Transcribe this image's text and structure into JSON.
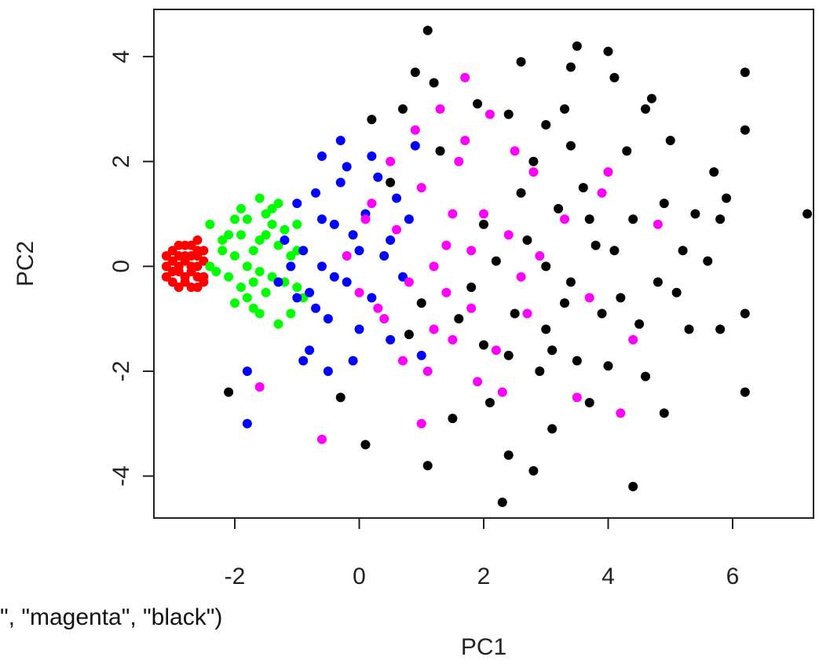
{
  "chart_data": {
    "type": "scatter",
    "title": "",
    "xlabel": "PC1",
    "ylabel": "PC2",
    "xlim": [
      -3.3,
      7.3
    ],
    "ylim": [
      -4.8,
      4.9
    ],
    "x_ticks": [
      -2,
      0,
      2,
      4,
      6
    ],
    "y_ticks": [
      -4,
      -2,
      0,
      2,
      4
    ],
    "x_tick_labels": [
      "-2",
      "0",
      "2",
      "4",
      "6"
    ],
    "y_tick_labels": [
      "-4",
      "-2",
      "0",
      "2",
      "4"
    ],
    "grid": false,
    "legend": null,
    "series": [
      {
        "color": "#ff0000",
        "points": [
          [
            -3.0,
            0.1
          ],
          [
            -2.9,
            -0.1
          ],
          [
            -2.8,
            0.2
          ],
          [
            -2.7,
            0.0
          ],
          [
            -2.6,
            0.3
          ],
          [
            -2.9,
            0.4
          ],
          [
            -3.1,
            -0.2
          ],
          [
            -2.8,
            -0.3
          ],
          [
            -2.6,
            -0.2
          ],
          [
            -2.7,
            0.4
          ],
          [
            -2.5,
            0.1
          ],
          [
            -3.0,
            -0.3
          ],
          [
            -2.9,
            0.2
          ],
          [
            -2.6,
            0.5
          ],
          [
            -2.8,
            0.1
          ],
          [
            -3.1,
            0.0
          ],
          [
            -2.7,
            -0.4
          ],
          [
            -2.5,
            -0.2
          ],
          [
            -2.9,
            -0.4
          ],
          [
            -2.6,
            0.2
          ],
          [
            -2.8,
            0.4
          ],
          [
            -3.0,
            0.3
          ],
          [
            -2.7,
            0.2
          ],
          [
            -2.5,
            0.3
          ],
          [
            -2.9,
            0.0
          ],
          [
            -2.7,
            -0.1
          ],
          [
            -2.6,
            -0.4
          ],
          [
            -3.0,
            -0.1
          ],
          [
            -2.8,
            -0.2
          ],
          [
            -2.6,
            0.0
          ],
          [
            -2.5,
            -0.3
          ],
          [
            -3.1,
            0.2
          ]
        ]
      },
      {
        "color": "#00ff00",
        "points": [
          [
            -2.4,
            0.8
          ],
          [
            -2.2,
            0.5
          ],
          [
            -2.0,
            0.2
          ],
          [
            -1.9,
            -0.4
          ],
          [
            -1.8,
            0.9
          ],
          [
            -1.7,
            0.3
          ],
          [
            -1.6,
            -0.1
          ],
          [
            -1.5,
            0.6
          ],
          [
            -1.4,
            1.1
          ],
          [
            -1.3,
            0.4
          ],
          [
            -1.2,
            -0.3
          ],
          [
            -1.1,
            0.2
          ],
          [
            -1.0,
            0.8
          ],
          [
            -0.9,
            -0.6
          ],
          [
            -1.6,
            1.3
          ],
          [
            -1.7,
            -0.8
          ],
          [
            -2.1,
            -0.2
          ],
          [
            -1.8,
            0.0
          ],
          [
            -1.5,
            -0.5
          ],
          [
            -1.3,
            1.2
          ],
          [
            -1.9,
            0.6
          ],
          [
            -2.3,
            -0.1
          ],
          [
            -2.0,
            0.9
          ],
          [
            -1.4,
            -0.2
          ],
          [
            -1.2,
            0.7
          ],
          [
            -1.0,
            -0.4
          ],
          [
            -1.6,
            0.5
          ],
          [
            -1.7,
            -0.3
          ],
          [
            -2.2,
            0.3
          ],
          [
            -1.8,
            -0.6
          ],
          [
            -1.1,
            -0.9
          ],
          [
            -1.3,
            -1.1
          ],
          [
            -2.0,
            -0.7
          ],
          [
            -1.5,
            1.0
          ],
          [
            -2.4,
            0.0
          ],
          [
            -1.9,
            1.1
          ],
          [
            -1.6,
            -0.9
          ],
          [
            -1.4,
            0.8
          ],
          [
            -2.1,
            0.6
          ],
          [
            -1.0,
            0.3
          ]
        ]
      },
      {
        "color": "#0000ff",
        "points": [
          [
            -1.2,
            0.5
          ],
          [
            -1.0,
            1.2
          ],
          [
            -0.9,
            0.3
          ],
          [
            -0.8,
            -0.5
          ],
          [
            -0.7,
            1.4
          ],
          [
            -0.6,
            0.0
          ],
          [
            -0.5,
            -1.0
          ],
          [
            -0.4,
            0.8
          ],
          [
            -0.3,
            1.6
          ],
          [
            -0.2,
            -0.3
          ],
          [
            -0.1,
            0.6
          ],
          [
            0.0,
            -1.2
          ],
          [
            0.1,
            1.0
          ],
          [
            0.2,
            -0.6
          ],
          [
            0.3,
            1.7
          ],
          [
            0.4,
            0.2
          ],
          [
            0.5,
            -1.4
          ],
          [
            0.6,
            1.3
          ],
          [
            0.7,
            -0.2
          ],
          [
            0.8,
            0.9
          ],
          [
            -0.6,
            2.1
          ],
          [
            -0.3,
            2.4
          ],
          [
            -0.8,
            -1.6
          ],
          [
            -0.5,
            -2.0
          ],
          [
            -0.9,
            -1.8
          ],
          [
            -1.3,
            -0.3
          ],
          [
            -1.1,
            0.0
          ],
          [
            -0.7,
            -0.8
          ],
          [
            -0.4,
            -0.2
          ],
          [
            0.0,
            0.3
          ],
          [
            -1.8,
            -2.0
          ],
          [
            -1.8,
            -3.0
          ],
          [
            -0.2,
            1.9
          ],
          [
            0.2,
            2.1
          ],
          [
            0.9,
            2.3
          ],
          [
            1.0,
            -1.7
          ],
          [
            -0.1,
            -1.8
          ],
          [
            0.5,
            0.5
          ],
          [
            -0.6,
            0.9
          ],
          [
            -1.0,
            -0.6
          ]
        ]
      },
      {
        "color": "#ff00ff",
        "points": [
          [
            -0.2,
            0.2
          ],
          [
            0.0,
            -0.5
          ],
          [
            0.2,
            1.2
          ],
          [
            0.4,
            -1.0
          ],
          [
            0.6,
            0.7
          ],
          [
            0.8,
            -0.3
          ],
          [
            1.0,
            1.5
          ],
          [
            1.2,
            -1.2
          ],
          [
            1.4,
            0.4
          ],
          [
            1.6,
            2.0
          ],
          [
            1.8,
            -0.8
          ],
          [
            2.0,
            1.0
          ],
          [
            2.2,
            -1.6
          ],
          [
            2.4,
            0.6
          ],
          [
            2.6,
            -0.2
          ],
          [
            2.8,
            1.8
          ],
          [
            1.1,
            -2.0
          ],
          [
            1.5,
            -1.4
          ],
          [
            1.7,
            2.4
          ],
          [
            0.9,
            2.6
          ],
          [
            1.3,
            3.0
          ],
          [
            1.7,
            3.6
          ],
          [
            2.1,
            2.9
          ],
          [
            1.9,
            -2.2
          ],
          [
            2.3,
            -2.4
          ],
          [
            1.0,
            -3.0
          ],
          [
            -0.6,
            -3.3
          ],
          [
            -1.6,
            -2.3
          ],
          [
            0.5,
            2.0
          ],
          [
            0.7,
            -1.8
          ],
          [
            1.2,
            0.0
          ],
          [
            1.5,
            1.0
          ],
          [
            3.3,
            0.9
          ],
          [
            3.7,
            -0.6
          ],
          [
            3.9,
            1.4
          ],
          [
            4.2,
            -2.8
          ],
          [
            4.4,
            -1.4
          ],
          [
            4.8,
            0.8
          ],
          [
            3.1,
            -1.6
          ],
          [
            2.5,
            2.2
          ],
          [
            0.3,
            -0.8
          ],
          [
            1.8,
            0.3
          ],
          [
            2.7,
            -0.9
          ],
          [
            0.1,
            0.9
          ],
          [
            1.4,
            -0.5
          ],
          [
            3.5,
            -2.5
          ],
          [
            4.0,
            1.8
          ],
          [
            2.9,
            0.2
          ]
        ]
      },
      {
        "color": "#000000",
        "points": [
          [
            1.1,
            4.5
          ],
          [
            3.5,
            4.2
          ],
          [
            4.0,
            4.1
          ],
          [
            6.2,
            3.7
          ],
          [
            2.6,
            3.9
          ],
          [
            3.4,
            3.8
          ],
          [
            0.9,
            3.7
          ],
          [
            4.1,
            3.6
          ],
          [
            1.2,
            3.5
          ],
          [
            4.7,
            3.2
          ],
          [
            6.2,
            2.6
          ],
          [
            7.2,
            1.0
          ],
          [
            0.7,
            3.0
          ],
          [
            1.9,
            3.1
          ],
          [
            3.3,
            3.0
          ],
          [
            4.6,
            3.0
          ],
          [
            2.4,
            2.9
          ],
          [
            0.2,
            2.8
          ],
          [
            3.0,
            2.7
          ],
          [
            5.0,
            2.4
          ],
          [
            5.7,
            1.8
          ],
          [
            5.9,
            1.3
          ],
          [
            5.4,
            1.0
          ],
          [
            5.8,
            0.9
          ],
          [
            6.2,
            -0.9
          ],
          [
            6.2,
            -2.4
          ],
          [
            5.6,
            0.1
          ],
          [
            5.2,
            0.3
          ],
          [
            5.3,
            -1.2
          ],
          [
            5.8,
            -1.2
          ],
          [
            4.9,
            -2.8
          ],
          [
            4.4,
            -4.2
          ],
          [
            2.3,
            -4.5
          ],
          [
            2.8,
            -3.9
          ],
          [
            2.4,
            -3.6
          ],
          [
            1.1,
            -3.8
          ],
          [
            0.1,
            -3.4
          ],
          [
            -0.3,
            -2.5
          ],
          [
            -2.1,
            -2.4
          ],
          [
            3.1,
            -3.1
          ],
          [
            3.7,
            -2.6
          ],
          [
            2.0,
            -1.5
          ],
          [
            2.5,
            -0.9
          ],
          [
            3.0,
            -1.2
          ],
          [
            3.4,
            -0.3
          ],
          [
            3.8,
            0.4
          ],
          [
            4.2,
            -0.6
          ],
          [
            2.7,
            0.5
          ],
          [
            3.2,
            1.1
          ],
          [
            3.6,
            1.5
          ],
          [
            4.4,
            0.9
          ],
          [
            1.8,
            -0.4
          ],
          [
            2.2,
            0.1
          ],
          [
            2.9,
            -2.0
          ],
          [
            3.5,
            -1.8
          ],
          [
            4.0,
            -1.9
          ],
          [
            4.6,
            -2.1
          ],
          [
            1.5,
            -2.9
          ],
          [
            2.1,
            -2.6
          ],
          [
            3.9,
            -0.9
          ],
          [
            4.8,
            -0.3
          ],
          [
            3.0,
            0.0
          ],
          [
            2.6,
            1.4
          ],
          [
            4.3,
            2.2
          ],
          [
            1.3,
            2.2
          ],
          [
            0.5,
            1.6
          ],
          [
            1.6,
            -1.0
          ],
          [
            2.4,
            -1.7
          ],
          [
            3.3,
            -0.7
          ],
          [
            4.5,
            -1.1
          ],
          [
            5.1,
            -0.5
          ],
          [
            3.7,
            0.9
          ],
          [
            2.8,
            2.0
          ],
          [
            3.1,
            -1.6
          ],
          [
            4.1,
            0.3
          ],
          [
            4.9,
            1.2
          ],
          [
            2.0,
            0.8
          ],
          [
            3.4,
            2.3
          ],
          [
            1.0,
            -0.7
          ],
          [
            0.8,
            -1.3
          ]
        ]
      }
    ]
  },
  "code_snippet": "\", \"magenta\", \"black\")"
}
